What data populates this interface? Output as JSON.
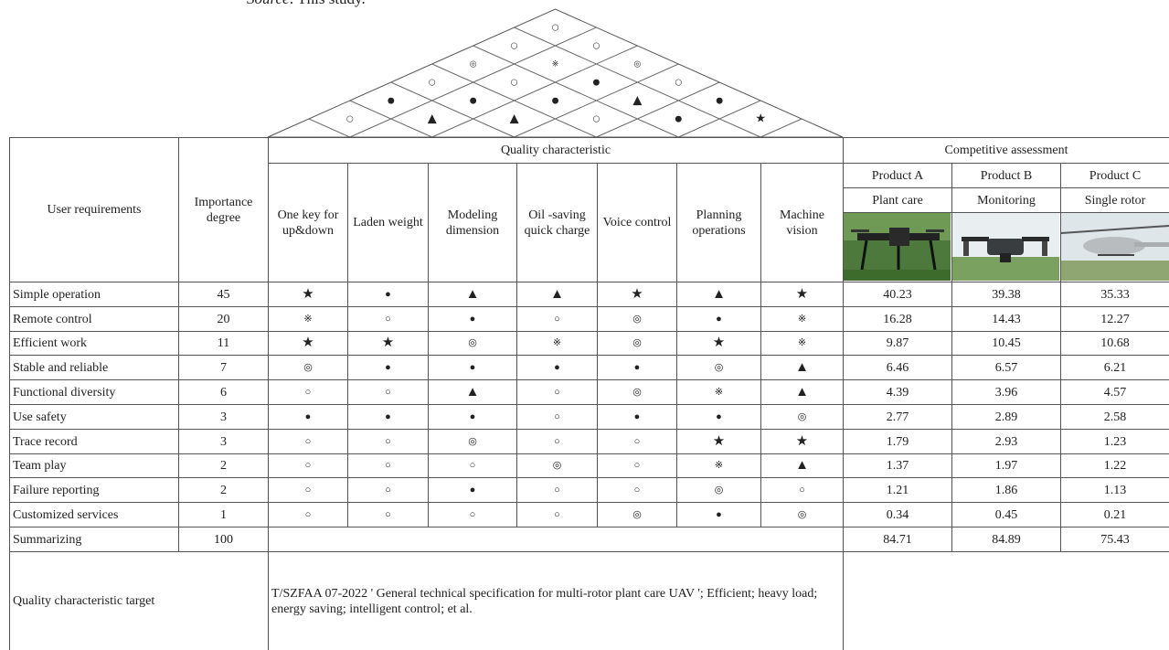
{
  "source": {
    "label": "Source",
    "text": ": This study."
  },
  "roof": [
    [
      "○",
      "▲",
      "▲",
      "○",
      "●",
      "★"
    ],
    [
      "●",
      "●",
      "●",
      "▲",
      "●"
    ],
    [
      "○",
      "○",
      "●",
      "○"
    ],
    [
      "◎",
      "※",
      "◎"
    ],
    [
      "○",
      "○"
    ],
    [
      "○"
    ]
  ],
  "table": {
    "headers": {
      "requirement": "User requirements",
      "importance": "Importance degree",
      "quality": "Quality characteristic",
      "competitive": "Competitive assessment"
    },
    "quality_columns": [
      "One key for up&down",
      "Laden weight",
      "Modeling dimension",
      "Oil -saving quick charge",
      "Voice control",
      "Planning operations",
      "Machine vision"
    ],
    "products": [
      {
        "name": "Product A",
        "type": "Plant care"
      },
      {
        "name": "Product B",
        "type": "Monitoring"
      },
      {
        "name": "Product C",
        "type": "Single rotor"
      }
    ],
    "rows": [
      {
        "requirement": "Simple operation",
        "importance": 45,
        "relations": [
          "★",
          "●",
          "▲",
          "▲",
          "★",
          "▲",
          "★"
        ],
        "assessment": [
          40.23,
          39.38,
          35.33
        ]
      },
      {
        "requirement": "Remote control",
        "importance": 20,
        "relations": [
          "※",
          "○",
          "●",
          "○",
          "◎",
          "●",
          "※"
        ],
        "assessment": [
          16.28,
          14.43,
          12.27
        ]
      },
      {
        "requirement": "Efficient work",
        "importance": 11,
        "relations": [
          "★",
          "★",
          "◎",
          "※",
          "◎",
          "★",
          "※"
        ],
        "assessment": [
          9.87,
          10.45,
          10.68
        ]
      },
      {
        "requirement": "Stable and reliable",
        "importance": 7,
        "relations": [
          "◎",
          "●",
          "●",
          "●",
          "●",
          "◎",
          "▲"
        ],
        "assessment": [
          6.46,
          6.57,
          6.21
        ]
      },
      {
        "requirement": "Functional diversity",
        "importance": 6,
        "relations": [
          "○",
          "○",
          "▲",
          "○",
          "◎",
          "※",
          "▲"
        ],
        "assessment": [
          4.39,
          3.96,
          4.57
        ]
      },
      {
        "requirement": "Use safety",
        "importance": 3,
        "relations": [
          "●",
          "●",
          "●",
          "○",
          "●",
          "●",
          "◎"
        ],
        "assessment": [
          2.77,
          2.89,
          2.58
        ]
      },
      {
        "requirement": "Trace record",
        "importance": 3,
        "relations": [
          "○",
          "○",
          "◎",
          "○",
          "○",
          "★",
          "★"
        ],
        "assessment": [
          1.79,
          2.93,
          1.23
        ]
      },
      {
        "requirement": "Team play",
        "importance": 2,
        "relations": [
          "○",
          "○",
          "○",
          "◎",
          "○",
          "※",
          "▲"
        ],
        "assessment": [
          1.37,
          1.97,
          1.22
        ]
      },
      {
        "requirement": "Failure reporting",
        "importance": 2,
        "relations": [
          "○",
          "○",
          "●",
          "○",
          "○",
          "◎",
          "○"
        ],
        "assessment": [
          1.21,
          1.86,
          1.13
        ]
      },
      {
        "requirement": "Customized services",
        "importance": 1,
        "relations": [
          "○",
          "○",
          "○",
          "○",
          "◎",
          "●",
          "◎"
        ],
        "assessment": [
          0.34,
          0.45,
          0.21
        ]
      }
    ],
    "summary": {
      "label": "Summarizing",
      "importance": 100,
      "assessment": [
        84.71,
        84.89,
        75.43
      ]
    },
    "target": {
      "label": "Quality characteristic target",
      "text": "T/SZFAA 07-2022 ' General technical specification for multi-rotor plant care UAV '; Efficient; heavy load; energy saving; intelligent control; et al."
    }
  }
}
